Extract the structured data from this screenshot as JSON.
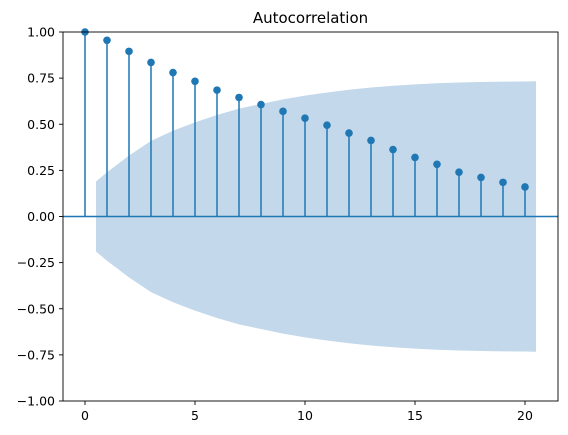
{
  "chart_data": {
    "type": "stem",
    "title": "Autocorrelation",
    "xlabel": "",
    "ylabel": "",
    "x": [
      0,
      1,
      2,
      3,
      4,
      5,
      6,
      7,
      8,
      9,
      10,
      11,
      12,
      13,
      14,
      15,
      16,
      17,
      18,
      19,
      20
    ],
    "values": [
      1.0,
      0.955,
      0.895,
      0.835,
      0.78,
      0.733,
      0.685,
      0.645,
      0.607,
      0.57,
      0.533,
      0.495,
      0.452,
      0.412,
      0.363,
      0.32,
      0.283,
      0.24,
      0.212,
      0.185,
      0.16
    ],
    "confidence_band": {
      "x": [
        0.5,
        1,
        2,
        3,
        4,
        5,
        6,
        7,
        8,
        9,
        10,
        11,
        12,
        13,
        14,
        15,
        16,
        17,
        18,
        19,
        20,
        20.5
      ],
      "upper": [
        0.19,
        0.24,
        0.33,
        0.41,
        0.465,
        0.51,
        0.55,
        0.585,
        0.61,
        0.635,
        0.655,
        0.672,
        0.687,
        0.699,
        0.709,
        0.716,
        0.722,
        0.726,
        0.729,
        0.731,
        0.732,
        0.733
      ]
    },
    "xlim": [
      -1.0,
      21.5
    ],
    "ylim": [
      -1.0,
      1.0
    ],
    "xticks": [
      0,
      5,
      10,
      15,
      20
    ],
    "yticks": [
      1.0,
      0.75,
      0.5,
      0.25,
      0.0,
      -0.25,
      -0.5,
      -0.75,
      -1.0
    ],
    "xtick_labels": [
      "0",
      "5",
      "10",
      "15",
      "20"
    ],
    "ytick_labels": [
      "1.00",
      "0.75",
      "0.50",
      "0.25",
      "0.00",
      "−0.25",
      "−0.50",
      "−0.75",
      "−1.00"
    ],
    "grid": false,
    "colors": {
      "stem": "#1f77b4",
      "band": "#c3d8ea",
      "axis": "#000000"
    }
  }
}
